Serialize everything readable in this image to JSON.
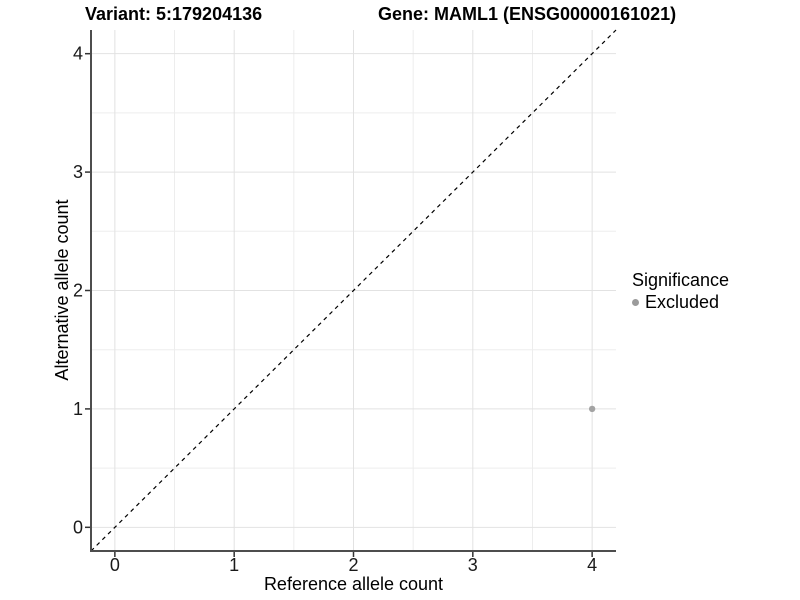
{
  "chart_data": {
    "type": "scatter",
    "title_left": "Variant: 5:179204136",
    "title_right": "Gene: MAML1 (ENSG00000161021)",
    "xlabel": "Reference allele count",
    "ylabel": "Alternative allele count",
    "xlim": [
      -0.2,
      4.2
    ],
    "ylim": [
      -0.2,
      4.2
    ],
    "x_ticks": [
      0,
      1,
      2,
      3,
      4
    ],
    "y_ticks": [
      0,
      1,
      2,
      3,
      4
    ],
    "minor_grid_step": 0.5,
    "grid": "on",
    "reference_line": {
      "type": "identity",
      "style": "dashed",
      "color": "#000000",
      "from": [
        -0.2,
        -0.2
      ],
      "to": [
        4.2,
        4.2
      ]
    },
    "series": [
      {
        "name": "Excluded",
        "marker": "circle",
        "color": "#a3a3a3",
        "points": [
          [
            4,
            1
          ]
        ]
      }
    ],
    "legend": {
      "title": "Significance",
      "position": "right",
      "items": [
        {
          "label": "Excluded",
          "color": "#9b9b9b",
          "marker": "circle"
        }
      ]
    }
  },
  "style": {
    "grid_major_color": "#e2e2e2",
    "grid_minor_color": "#ededed",
    "axis_line_color": "#4d4d4d",
    "tick_color": "#333333",
    "tick_label_color": "#1a1a1a",
    "dashed_line_color": "#000000",
    "background_color": "#ffffff"
  }
}
